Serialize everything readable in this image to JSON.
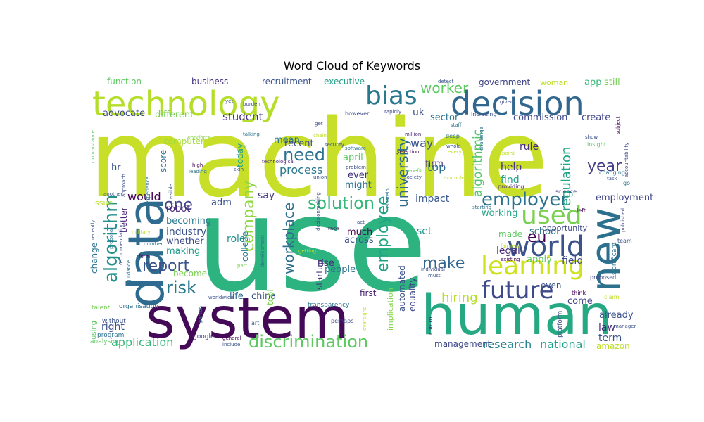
{
  "title": "Word Cloud of Keywords",
  "words": [
    {
      "text": "machine",
      "color": "#c8df2a"
    },
    {
      "text": "use",
      "color": "#2db380"
    },
    {
      "text": "system",
      "color": "#440a58"
    },
    {
      "text": "human",
      "color": "#26a883"
    },
    {
      "text": "data",
      "color": "#2f6b8e"
    },
    {
      "text": "technology",
      "color": "#b5de2b"
    },
    {
      "text": "decision",
      "color": "#31678e"
    },
    {
      "text": "new",
      "color": "#2d708e"
    },
    {
      "text": "bias",
      "color": "#2a788e"
    },
    {
      "text": "learning",
      "color": "#cfe11c"
    },
    {
      "text": "world",
      "color": "#3b528b"
    },
    {
      "text": "future",
      "color": "#3e4989"
    },
    {
      "text": "used",
      "color": "#7ad151"
    },
    {
      "text": "discrimination",
      "color": "#5ec962"
    },
    {
      "text": "algorithm",
      "color": "#21918c"
    },
    {
      "text": "employer",
      "color": "#2c718e"
    },
    {
      "text": "solution",
      "color": "#35b779"
    },
    {
      "text": "company",
      "color": "#8fd744"
    },
    {
      "text": "report",
      "color": "#3b528b"
    },
    {
      "text": "employee",
      "color": "#20a486"
    },
    {
      "text": "workplace",
      "color": "#2e6f8e"
    },
    {
      "text": "university",
      "color": "#31688e"
    },
    {
      "text": "make",
      "color": "#31668e"
    },
    {
      "text": "risk",
      "color": "#2a788e"
    },
    {
      "text": "need",
      "color": "#2c728e"
    },
    {
      "text": "worker",
      "color": "#5ec962"
    },
    {
      "text": "year",
      "color": "#433e85"
    },
    {
      "text": "eu",
      "color": "#440154"
    },
    {
      "text": "one",
      "color": "#414487"
    },
    {
      "text": "regulation",
      "color": "#22a785"
    },
    {
      "text": "algorithmic",
      "color": "#52c569"
    },
    {
      "text": "application",
      "color": "#35b779"
    },
    {
      "text": "research",
      "color": "#25858e"
    },
    {
      "text": "national",
      "color": "#1fa088"
    },
    {
      "text": "hiring",
      "color": "#b5de2b"
    },
    {
      "text": "process",
      "color": "#2a788e"
    },
    {
      "text": "would",
      "color": "#440154"
    },
    {
      "text": "help",
      "color": "#46327e"
    },
    {
      "text": "impact",
      "color": "#38588c"
    },
    {
      "text": "field",
      "color": "#3e4989"
    },
    {
      "text": "rule",
      "color": "#482878"
    },
    {
      "text": "law",
      "color": "#472c7a"
    },
    {
      "text": "term",
      "color": "#3b528b"
    },
    {
      "text": "student",
      "color": "#472d7b"
    },
    {
      "text": "different",
      "color": "#75d054"
    },
    {
      "text": "advocate",
      "color": "#3e4989"
    },
    {
      "text": "function",
      "color": "#5ec962"
    },
    {
      "text": "business",
      "color": "#46337e"
    },
    {
      "text": "recruitment",
      "color": "#3b528b"
    },
    {
      "text": "executive",
      "color": "#1f9f88"
    },
    {
      "text": "government",
      "color": "#414487"
    },
    {
      "text": "woman",
      "color": "#bddf26"
    },
    {
      "text": "app",
      "color": "#35b779"
    },
    {
      "text": "still",
      "color": "#75d054"
    },
    {
      "text": "uk",
      "color": "#3b528b"
    },
    {
      "text": "sector",
      "color": "#2c728e"
    },
    {
      "text": "commission",
      "color": "#3e4989"
    },
    {
      "text": "create",
      "color": "#414487"
    },
    {
      "text": "way",
      "color": "#3b528b"
    },
    {
      "text": "top",
      "color": "#2c728e"
    },
    {
      "text": "find",
      "color": "#1f9e89"
    },
    {
      "text": "apply",
      "color": "#5ec962"
    },
    {
      "text": "industry",
      "color": "#3b528b"
    },
    {
      "text": "role",
      "color": "#21918c"
    },
    {
      "text": "legal",
      "color": "#472c7a"
    },
    {
      "text": "school",
      "color": "#2c728e"
    },
    {
      "text": "employment",
      "color": "#404688"
    },
    {
      "text": "adm",
      "color": "#3b528b"
    },
    {
      "text": "say",
      "color": "#443a83"
    },
    {
      "text": "robot",
      "color": "#482677"
    },
    {
      "text": "becoming",
      "color": "#2a788e"
    },
    {
      "text": "whether",
      "color": "#3e4989"
    },
    {
      "text": "making",
      "color": "#1f9e89"
    },
    {
      "text": "become",
      "color": "#7ad151"
    },
    {
      "text": "china",
      "color": "#3b528b"
    },
    {
      "text": "life",
      "color": "#31688e"
    },
    {
      "text": "mean",
      "color": "#2c728e"
    },
    {
      "text": "recent",
      "color": "#3e4989"
    },
    {
      "text": "april",
      "color": "#5ec962"
    },
    {
      "text": "ever",
      "color": "#46337e"
    },
    {
      "text": "might",
      "color": "#2c728e"
    },
    {
      "text": "firm",
      "color": "#472c7a"
    },
    {
      "text": "working",
      "color": "#20a486"
    },
    {
      "text": "made",
      "color": "#5ec962"
    },
    {
      "text": "opportunity",
      "color": "#3e4989"
    },
    {
      "text": "even",
      "color": "#3b528b"
    },
    {
      "text": "come",
      "color": "#414487"
    },
    {
      "text": "already",
      "color": "#3b528b"
    },
    {
      "text": "management",
      "color": "#3e4989"
    },
    {
      "text": "amazon",
      "color": "#bddf26"
    },
    {
      "text": "right",
      "color": "#3b528b"
    },
    {
      "text": "computer",
      "color": "#a2da37"
    },
    {
      "text": "score",
      "color": "#2c728e"
    },
    {
      "text": "today",
      "color": "#1f9e89"
    },
    {
      "text": "hr",
      "color": "#3b528b"
    },
    {
      "text": "college",
      "color": "#2a788e"
    },
    {
      "text": "much",
      "color": "#440154"
    },
    {
      "text": "across",
      "color": "#3b528b"
    },
    {
      "text": "rise",
      "color": "#472c7a"
    },
    {
      "text": "people",
      "color": "#2c728e"
    },
    {
      "text": "first",
      "color": "#482475"
    },
    {
      "text": "set",
      "color": "#21918c"
    },
    {
      "text": "startup",
      "color": "#46337e"
    },
    {
      "text": "tool",
      "color": "#7ad151"
    },
    {
      "text": "issue",
      "color": "#bddf26"
    },
    {
      "text": "change",
      "color": "#2c728e"
    },
    {
      "text": "better",
      "color": "#482878"
    },
    {
      "text": "automated",
      "color": "#3b528b"
    },
    {
      "text": "equality",
      "color": "#3e4989"
    },
    {
      "text": "implication",
      "color": "#86d549"
    },
    {
      "text": "using",
      "color": "#5ec962"
    },
    {
      "text": "without",
      "color": "#3b528b"
    },
    {
      "text": "program",
      "color": "#2c728e"
    },
    {
      "text": "talent",
      "color": "#75d054"
    },
    {
      "text": "analysing",
      "color": "#5ec962"
    },
    {
      "text": "organisation",
      "color": "#2c728e"
    },
    {
      "text": "google",
      "color": "#414487"
    },
    {
      "text": "art",
      "color": "#3b528b"
    },
    {
      "text": "transparency",
      "color": "#2c728e"
    },
    {
      "text": "perhaps",
      "color": "#3e4989"
    },
    {
      "text": "control",
      "color": "#482878"
    },
    {
      "text": "platform",
      "color": "#3e4989"
    },
    {
      "text": "think",
      "color": "#440154"
    },
    {
      "text": "claim",
      "color": "#bddf26"
    },
    {
      "text": "proposed",
      "color": "#3e4989"
    },
    {
      "text": "significant",
      "color": "#2c728e"
    },
    {
      "text": "team",
      "color": "#3b528b"
    },
    {
      "text": "published",
      "color": "#414487"
    },
    {
      "text": "left",
      "color": "#440154"
    },
    {
      "text": "go",
      "color": "#2c728e"
    },
    {
      "text": "task",
      "color": "#3b528b"
    },
    {
      "text": "changing",
      "color": "#2c728e"
    },
    {
      "text": "science",
      "color": "#3e4989"
    },
    {
      "text": "providing",
      "color": "#482878"
    },
    {
      "text": "insight",
      "color": "#5ec962"
    },
    {
      "text": "show",
      "color": "#3b528b"
    },
    {
      "text": "subject",
      "color": "#440154"
    },
    {
      "text": "accountability",
      "color": "#3e4989"
    },
    {
      "text": "challenge",
      "color": "#2c728e"
    },
    {
      "text": "every",
      "color": "#bddf26"
    },
    {
      "text": "whole",
      "color": "#3b528b"
    },
    {
      "text": "point",
      "color": "#bddf26"
    },
    {
      "text": "given",
      "color": "#3e4989"
    },
    {
      "text": "including",
      "color": "#3b528b"
    },
    {
      "text": "staff",
      "color": "#2c728e"
    },
    {
      "text": "detect",
      "color": "#3b528b"
    },
    {
      "text": "deep",
      "color": "#2c728e"
    },
    {
      "text": "selection",
      "color": "#440154"
    },
    {
      "text": "million",
      "color": "#482878"
    },
    {
      "text": "rapidly",
      "color": "#3e4989"
    },
    {
      "text": "security",
      "color": "#3b528b"
    },
    {
      "text": "software",
      "color": "#2c728e"
    },
    {
      "text": "problem",
      "color": "#3e4989"
    },
    {
      "text": "union",
      "color": "#3b528b"
    },
    {
      "text": "chain",
      "color": "#bddf26"
    },
    {
      "text": "get",
      "color": "#3e4989"
    },
    {
      "text": "technological",
      "color": "#482878"
    },
    {
      "text": "skin",
      "color": "#3b528b"
    },
    {
      "text": "high",
      "color": "#440154"
    },
    {
      "text": "leading",
      "color": "#2c728e"
    },
    {
      "text": "workforce",
      "color": "#86d549"
    },
    {
      "text": "yet",
      "color": "#3b528b"
    },
    {
      "text": "burden",
      "color": "#3e4989"
    },
    {
      "text": "talking",
      "color": "#2c728e"
    },
    {
      "text": "approach",
      "color": "#3b528b"
    },
    {
      "text": "experience",
      "color": "#2c728e"
    },
    {
      "text": "circumstance",
      "color": "#5ec962"
    },
    {
      "text": "another",
      "color": "#3b528b"
    },
    {
      "text": "proposal",
      "color": "#2c728e"
    },
    {
      "text": "recently",
      "color": "#3b528b"
    },
    {
      "text": "military",
      "color": "#bddf26"
    },
    {
      "text": "number",
      "color": "#2c728e"
    },
    {
      "text": "form",
      "color": "#440154"
    },
    {
      "text": "guidance",
      "color": "#2c728e"
    },
    {
      "text": "recommendation",
      "color": "#3e4989"
    },
    {
      "text": "possible",
      "color": "#3b528b"
    },
    {
      "text": "development",
      "color": "#2c728e"
    },
    {
      "text": "part",
      "color": "#75d054"
    },
    {
      "text": "worldwide",
      "color": "#3b528b"
    },
    {
      "text": "general",
      "color": "#440154"
    },
    {
      "text": "include",
      "color": "#3b528b"
    },
    {
      "text": "person",
      "color": "#2c728e"
    },
    {
      "text": "race",
      "color": "#440154"
    },
    {
      "text": "act",
      "color": "#3b528b"
    },
    {
      "text": "decisionmaking",
      "color": "#3e4989"
    },
    {
      "text": "einstein",
      "color": "#2c728e"
    },
    {
      "text": "getting",
      "color": "#bddf26"
    },
    {
      "text": "oversight",
      "color": "#bddf26"
    },
    {
      "text": "must",
      "color": "#3b528b"
    },
    {
      "text": "individual",
      "color": "#3e4989"
    },
    {
      "text": "existing",
      "color": "#440154"
    },
    {
      "text": "fairness",
      "color": "#bddf26"
    },
    {
      "text": "starting",
      "color": "#2c728e"
    },
    {
      "text": "example",
      "color": "#bddf26"
    },
    {
      "text": "society",
      "color": "#3b528b"
    },
    {
      "text": "benefit",
      "color": "#5ec962"
    },
    {
      "text": "manager",
      "color": "#3b528b"
    },
    {
      "text": "however",
      "color": "#3e4989"
    }
  ]
}
